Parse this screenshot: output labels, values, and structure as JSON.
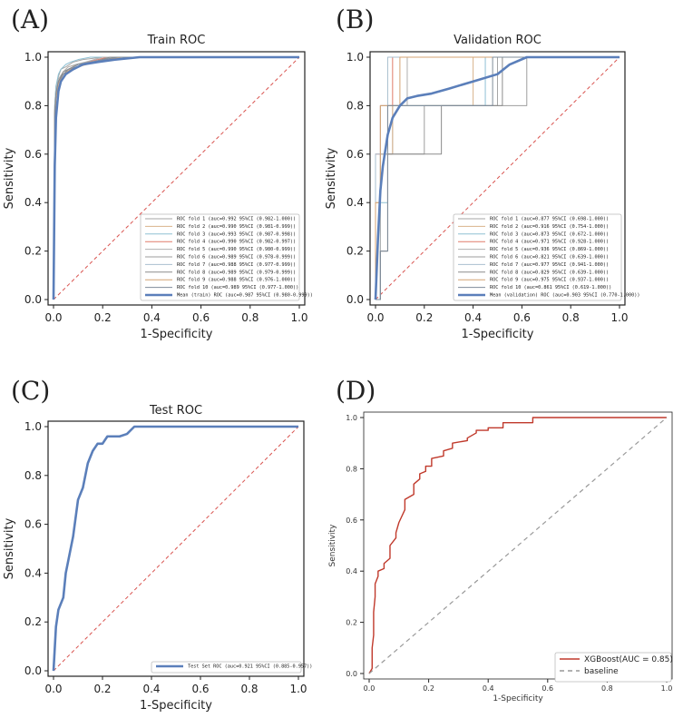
{
  "panels": [
    "(A)",
    "(B)",
    "(C)",
    "(D)"
  ],
  "colors": {
    "fold_colors": [
      "#a6a6a6",
      "#d9b38c",
      "#8fc1d4",
      "#e07b6a",
      "#b0b0b0",
      "#9e9e9e",
      "#a9bfcf",
      "#8c8c8c",
      "#d4a373",
      "#7f8c9a"
    ],
    "mean": "#5b7fba",
    "diag": "#d9534f",
    "xgb": "#c0392b",
    "baseline": "#999999"
  },
  "chart_data": [
    {
      "type": "line",
      "id": "A",
      "title": "Train ROC",
      "xlabel": "1-Specificity",
      "ylabel": "Sensitivity",
      "xlim": [
        0,
        1
      ],
      "ylim": [
        0,
        1
      ],
      "xticks": [
        "0.0",
        "0.2",
        "0.4",
        "0.6",
        "0.8",
        "1.0"
      ],
      "yticks": [
        "0.0",
        "0.2",
        "0.4",
        "0.6",
        "0.8",
        "1.0"
      ],
      "legend_position": "lower-right",
      "series": [
        {
          "name": "ROC fold    1 (auc=0.992 95%CI (0.982-1.000))",
          "x": [
            0,
            0.005,
            0.01,
            0.02,
            0.03,
            0.05,
            0.08,
            0.12,
            0.2,
            0.3,
            1
          ],
          "y": [
            0,
            0.8,
            0.88,
            0.92,
            0.95,
            0.96,
            0.98,
            0.99,
            1,
            1,
            1
          ]
        },
        {
          "name": "ROC fold    2 (auc=0.990 95%CI (0.981-0.999))",
          "x": [
            0,
            0.005,
            0.01,
            0.02,
            0.04,
            0.06,
            0.1,
            0.16,
            0.27,
            1
          ],
          "y": [
            0,
            0.78,
            0.86,
            0.9,
            0.94,
            0.96,
            0.97,
            0.98,
            1,
            1
          ]
        },
        {
          "name": "ROC fold    3 (auc=0.993 95%CI (0.987-0.998))",
          "x": [
            0,
            0.005,
            0.01,
            0.02,
            0.03,
            0.05,
            0.07,
            0.1,
            0.15,
            1
          ],
          "y": [
            0,
            0.8,
            0.88,
            0.93,
            0.95,
            0.97,
            0.98,
            0.99,
            1,
            1
          ]
        },
        {
          "name": "ROC fold    4 (auc=0.990 95%CI (0.982-0.997))",
          "x": [
            0,
            0.005,
            0.01,
            0.02,
            0.04,
            0.06,
            0.1,
            0.14,
            0.22,
            1
          ],
          "y": [
            0,
            0.77,
            0.85,
            0.9,
            0.93,
            0.95,
            0.97,
            0.98,
            1,
            1
          ]
        },
        {
          "name": "ROC fold    5 (auc=0.990 95%CI (0.980-0.999))",
          "x": [
            0,
            0.005,
            0.01,
            0.02,
            0.04,
            0.06,
            0.09,
            0.13,
            0.2,
            1
          ],
          "y": [
            0,
            0.79,
            0.86,
            0.91,
            0.94,
            0.96,
            0.97,
            0.98,
            1,
            1
          ]
        },
        {
          "name": "ROC fold    6 (auc=0.989 95%CI (0.978-0.999))",
          "x": [
            0,
            0.005,
            0.01,
            0.02,
            0.04,
            0.07,
            0.1,
            0.15,
            0.25,
            1
          ],
          "y": [
            0,
            0.76,
            0.84,
            0.9,
            0.93,
            0.95,
            0.97,
            0.98,
            1,
            1
          ]
        },
        {
          "name": "ROC fold    7 (auc=0.988 95%CI (0.977-0.999))",
          "x": [
            0,
            0.005,
            0.01,
            0.02,
            0.04,
            0.06,
            0.1,
            0.15,
            0.24,
            1
          ],
          "y": [
            0,
            0.75,
            0.84,
            0.9,
            0.93,
            0.95,
            0.97,
            0.98,
            1,
            1
          ]
        },
        {
          "name": "ROC fold    8 (auc=0.989 95%CI (0.979-0.999))",
          "x": [
            0,
            0.005,
            0.01,
            0.02,
            0.04,
            0.06,
            0.1,
            0.16,
            0.23,
            1
          ],
          "y": [
            0,
            0.78,
            0.85,
            0.9,
            0.94,
            0.95,
            0.96,
            0.98,
            1,
            1
          ]
        },
        {
          "name": "ROC fold    9 (auc=0.988 95%CI (0.976-1.000))",
          "x": [
            0,
            0.005,
            0.01,
            0.02,
            0.04,
            0.07,
            0.1,
            0.17,
            0.28,
            1
          ],
          "y": [
            0,
            0.74,
            0.83,
            0.89,
            0.93,
            0.95,
            0.96,
            0.98,
            1,
            1
          ]
        },
        {
          "name": "ROC fold   10 (auc=0.989 95%CI (0.977-1.000))",
          "x": [
            0,
            0.005,
            0.01,
            0.02,
            0.04,
            0.06,
            0.1,
            0.15,
            0.26,
            1
          ],
          "y": [
            0,
            0.77,
            0.85,
            0.9,
            0.93,
            0.95,
            0.97,
            0.98,
            1,
            1
          ]
        },
        {
          "name": "Mean (train) ROC (auc=0.987 95%CI (0.980-0.999))",
          "mean": true,
          "x": [
            0,
            0.005,
            0.01,
            0.02,
            0.03,
            0.05,
            0.08,
            0.12,
            0.18,
            0.25,
            0.35,
            1
          ],
          "y": [
            0,
            0.55,
            0.75,
            0.86,
            0.9,
            0.93,
            0.95,
            0.97,
            0.98,
            0.99,
            1,
            1
          ]
        }
      ]
    },
    {
      "type": "line",
      "id": "B",
      "title": "Validation ROC",
      "xlabel": "1-Specificity",
      "ylabel": "Sensitivity",
      "xlim": [
        0,
        1
      ],
      "ylim": [
        0,
        1
      ],
      "xticks": [
        "0.0",
        "0.2",
        "0.4",
        "0.6",
        "0.8",
        "1.0"
      ],
      "yticks": [
        "0.0",
        "0.2",
        "0.4",
        "0.6",
        "0.8",
        "1.0"
      ],
      "legend_position": "lower-right",
      "series": [
        {
          "name": "ROC fold    1 (auc=0.877 95%CI (0.698-1.000))",
          "x": [
            0,
            0.02,
            0.02,
            0.07,
            0.07,
            0.27,
            0.27,
            0.5,
            0.5,
            0.62,
            0.62,
            1
          ],
          "y": [
            0,
            0,
            0.6,
            0.6,
            0.8,
            0.8,
            0.8,
            0.8,
            1,
            1,
            1,
            1
          ]
        },
        {
          "name": "ROC fold    2 (auc=0.916 95%CI (0.754-1.000))",
          "x": [
            0,
            0,
            0.02,
            0.02,
            0.07,
            0.07,
            0.4,
            0.4,
            1
          ],
          "y": [
            0,
            0.4,
            0.4,
            0.6,
            0.6,
            0.8,
            0.8,
            1,
            1
          ]
        },
        {
          "name": "ROC fold    3 (auc=0.873 95%CI (0.672-1.000))",
          "x": [
            0,
            0.02,
            0.02,
            0.05,
            0.05,
            0.2,
            0.2,
            0.45,
            0.45,
            1
          ],
          "y": [
            0,
            0,
            0.4,
            0.4,
            0.8,
            0.8,
            0.8,
            0.8,
            1,
            1
          ]
        },
        {
          "name": "ROC fold    4 (auc=0.971 95%CI (0.928-1.000))",
          "x": [
            0,
            0,
            0.02,
            0.02,
            0.07,
            0.07,
            1
          ],
          "y": [
            0,
            0.6,
            0.6,
            0.8,
            0.8,
            1,
            1
          ]
        },
        {
          "name": "ROC fold    5 (auc=0.936 95%CI (0.869-1.000))",
          "x": [
            0,
            0.02,
            0.02,
            0.05,
            0.05,
            0.13,
            0.13,
            1
          ],
          "y": [
            0,
            0,
            0.6,
            0.6,
            0.8,
            0.8,
            1,
            1
          ]
        },
        {
          "name": "ROC fold    6 (auc=0.821 95%CI (0.639-1.000))",
          "x": [
            0,
            0.02,
            0.02,
            0.05,
            0.05,
            0.2,
            0.2,
            0.62,
            0.62,
            1
          ],
          "y": [
            0,
            0,
            0.2,
            0.2,
            0.6,
            0.6,
            0.8,
            0.8,
            1,
            1
          ]
        },
        {
          "name": "ROC fold    7 (auc=0.977 95%CI (0.941-1.000))",
          "x": [
            0,
            0,
            0.02,
            0.02,
            0.05,
            0.05,
            1
          ],
          "y": [
            0,
            0.6,
            0.6,
            0.8,
            0.8,
            1,
            1
          ]
        },
        {
          "name": "ROC fold    8 (auc=0.829 95%CI (0.639-1.000))",
          "x": [
            0,
            0.02,
            0.02,
            0.05,
            0.05,
            0.27,
            0.27,
            0.52,
            0.52,
            1
          ],
          "y": [
            0,
            0,
            0.2,
            0.2,
            0.6,
            0.6,
            0.8,
            0.8,
            1,
            1
          ]
        },
        {
          "name": "ROC fold    9 (auc=0.975 95%CI (0.937-1.000))",
          "x": [
            0,
            0,
            0.02,
            0.02,
            0.07,
            0.07,
            0.1,
            0.1,
            1
          ],
          "y": [
            0,
            0.4,
            0.4,
            0.8,
            0.8,
            0.8,
            0.8,
            1,
            1
          ]
        },
        {
          "name": "ROC fold   10 (auc=0.861 95%CI (0.619-1.000))",
          "x": [
            0,
            0.02,
            0.02,
            0.05,
            0.05,
            0.2,
            0.2,
            0.48,
            0.48,
            1
          ],
          "y": [
            0,
            0,
            0.2,
            0.2,
            0.8,
            0.8,
            0.8,
            0.8,
            1,
            1
          ]
        },
        {
          "name": "Mean (validation) ROC (auc=0.903 95%CI (0.770-1.000))",
          "mean": true,
          "x": [
            0,
            0.01,
            0.02,
            0.03,
            0.05,
            0.07,
            0.1,
            0.13,
            0.17,
            0.23,
            0.3,
            0.4,
            0.5,
            0.55,
            0.62,
            1
          ],
          "y": [
            0,
            0.25,
            0.45,
            0.55,
            0.68,
            0.75,
            0.8,
            0.83,
            0.84,
            0.85,
            0.87,
            0.9,
            0.93,
            0.97,
            1,
            1
          ]
        }
      ]
    },
    {
      "type": "line",
      "id": "C",
      "title": "Test ROC",
      "xlabel": "1-Specificity",
      "ylabel": "Sensitivity",
      "xlim": [
        0,
        1
      ],
      "ylim": [
        0,
        1
      ],
      "xticks": [
        "0.0",
        "0.2",
        "0.4",
        "0.6",
        "0.8",
        "1.0"
      ],
      "yticks": [
        "0.0",
        "0.2",
        "0.4",
        "0.6",
        "0.8",
        "1.0"
      ],
      "legend_position": "lower-right",
      "series": [
        {
          "name": "Test Set ROC (auc=0.921 95%CI (0.885-0.957))",
          "mean": true,
          "x": [
            0,
            0.01,
            0.02,
            0.04,
            0.05,
            0.06,
            0.08,
            0.1,
            0.12,
            0.14,
            0.16,
            0.18,
            0.2,
            0.22,
            0.24,
            0.27,
            0.3,
            0.33,
            0.36,
            1
          ],
          "y": [
            0,
            0.18,
            0.25,
            0.3,
            0.4,
            0.45,
            0.55,
            0.7,
            0.75,
            0.85,
            0.9,
            0.93,
            0.93,
            0.96,
            0.96,
            0.96,
            0.97,
            1,
            1,
            1
          ]
        }
      ]
    },
    {
      "type": "line",
      "id": "D",
      "title": "",
      "xlabel": "1-Specificity",
      "ylabel": "Sensitivity",
      "xlim": [
        0,
        1
      ],
      "ylim": [
        0,
        1
      ],
      "xticks": [
        "0.0",
        "0.2",
        "0.4",
        "0.6",
        "0.8",
        "1.0"
      ],
      "yticks": [
        "0.0",
        "0.2",
        "0.4",
        "0.6",
        "0.8",
        "1.0"
      ],
      "legend_position": "lower-right",
      "series": [
        {
          "name": "XGBoost(AUC = 0.85)",
          "x": [
            0,
            0.01,
            0.01,
            0.015,
            0.015,
            0.02,
            0.02,
            0.03,
            0.03,
            0.05,
            0.05,
            0.07,
            0.07,
            0.09,
            0.09,
            0.1,
            0.1,
            0.12,
            0.12,
            0.15,
            0.15,
            0.17,
            0.17,
            0.19,
            0.19,
            0.21,
            0.21,
            0.25,
            0.25,
            0.28,
            0.28,
            0.33,
            0.33,
            0.36,
            0.36,
            0.4,
            0.4,
            0.45,
            0.45,
            0.55,
            0.55,
            0.6,
            0.6,
            1
          ],
          "y": [
            0,
            0.02,
            0.1,
            0.15,
            0.24,
            0.3,
            0.35,
            0.38,
            0.4,
            0.41,
            0.43,
            0.45,
            0.5,
            0.53,
            0.55,
            0.59,
            0.59,
            0.64,
            0.68,
            0.7,
            0.74,
            0.76,
            0.78,
            0.79,
            0.81,
            0.81,
            0.84,
            0.85,
            0.87,
            0.88,
            0.9,
            0.91,
            0.92,
            0.94,
            0.95,
            0.95,
            0.96,
            0.96,
            0.98,
            0.98,
            1.0,
            1.0,
            1.0,
            1.0
          ]
        },
        {
          "name": "baseline",
          "dashed": true,
          "x": [
            0,
            1
          ],
          "y": [
            0,
            1
          ]
        }
      ]
    }
  ]
}
